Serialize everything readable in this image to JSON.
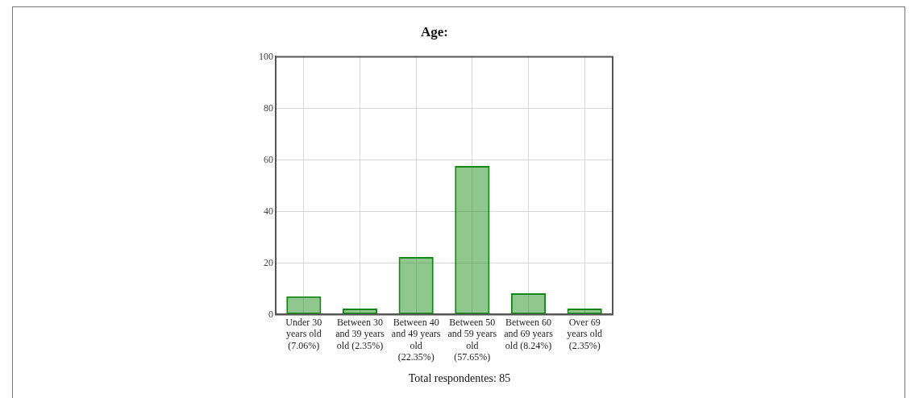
{
  "chart_data": {
    "type": "bar",
    "title": "Age:",
    "categories": [
      "Under 30 years old (7.06%)",
      "Between 30 and 39 years old (2.35%)",
      "Between 40 and 49 years old (22.35%)",
      "Between 50 and 59 years old (57.65%)",
      "Between 60 and 69 years old (8.24%)",
      "Over 69 years old (2.35%)"
    ],
    "values": [
      7.06,
      2.35,
      22.35,
      57.65,
      8.24,
      2.35
    ],
    "color": "#118811",
    "ylim": [
      0,
      100
    ],
    "yticks": [
      0,
      20,
      40,
      60,
      80,
      100
    ],
    "grid": true,
    "annotations": [
      "Total respondentes: 85"
    ]
  }
}
